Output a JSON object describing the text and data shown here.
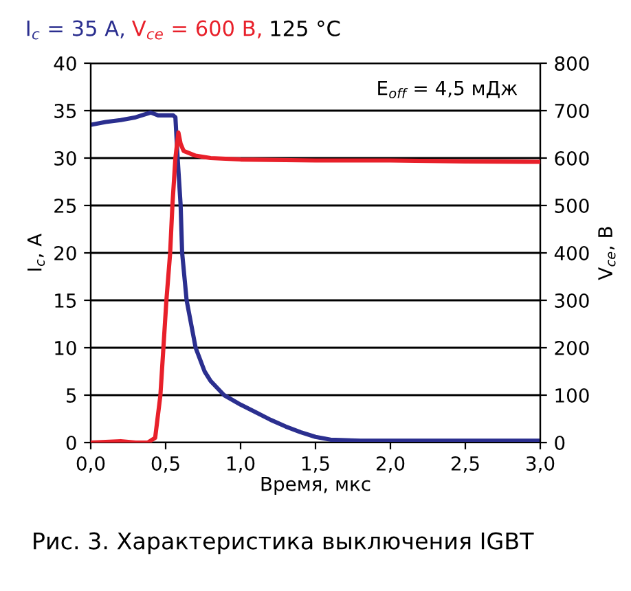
{
  "chart_data": {
    "type": "line",
    "title": "125 °C",
    "xlabel": "Время, мкс",
    "ylabel": "I$_{c}$, A",
    "y2label": "V$_{ce}$, B",
    "annotations": [
      "E$_{off}$ = 4,5 мДж",
      "Рис. 3. Характеристика выключения IGBT"
    ],
    "series": [
      {
        "name": "I$_{c}$ = 35 A,",
        "color": "#2b2f8f",
        "x": [
          0,
          0.1,
          0.2,
          0.3,
          0.4,
          0.45,
          0.5,
          0.55,
          0.565,
          0.58,
          0.6,
          0.61,
          0.64,
          0.7,
          0.76,
          0.8,
          0.89,
          1.0,
          1.1,
          1.2,
          1.3,
          1.4,
          1.5,
          1.6,
          1.8,
          2.0,
          2.5,
          3.0
        ],
        "values": [
          33.5,
          33.8,
          34.0,
          34.3,
          34.8,
          34.5,
          34.5,
          34.5,
          34.3,
          30,
          25,
          20,
          15,
          10,
          7.5,
          6.5,
          5,
          4,
          3.2,
          2.4,
          1.7,
          1.1,
          0.6,
          0.3,
          0.2,
          0.2,
          0.2,
          0.2
        ]
      },
      {
        "name": "V$_{ce}$ = 600 B,",
        "color": "#e8202a",
        "axis": "y2",
        "x": [
          0,
          0.2,
          0.3,
          0.38,
          0.43,
          0.465,
          0.485,
          0.505,
          0.53,
          0.545,
          0.565,
          0.585,
          0.6,
          0.62,
          0.7,
          0.8,
          1.0,
          1.5,
          2.0,
          2.5,
          3.0
        ],
        "values": [
          0,
          3,
          0,
          0,
          10,
          100,
          200,
          300,
          400,
          500,
          600,
          654,
          630,
          615,
          605,
          600,
          597,
          595,
          595,
          593,
          592
        ]
      }
    ],
    "xlim": [
      0,
      3
    ],
    "xticks": [
      {
        "value": 0,
        "label": "0,0"
      },
      {
        "value": 0.5,
        "label": "0,5"
      },
      {
        "value": 1,
        "label": "1,0"
      },
      {
        "value": 1.5,
        "label": "1,5"
      },
      {
        "value": 2,
        "label": "2,0"
      },
      {
        "value": 2.5,
        "label": "2,5"
      },
      {
        "value": 3,
        "label": "3,0"
      }
    ],
    "ylim": [
      0,
      40
    ],
    "yticks": [
      0,
      5,
      10,
      15,
      20,
      25,
      30,
      35,
      40
    ],
    "y2lim": [
      0,
      800
    ],
    "y2ticks": [
      0,
      100,
      200,
      300,
      400,
      500,
      600,
      700,
      800
    ],
    "grid": "y",
    "line_style": "solid"
  }
}
